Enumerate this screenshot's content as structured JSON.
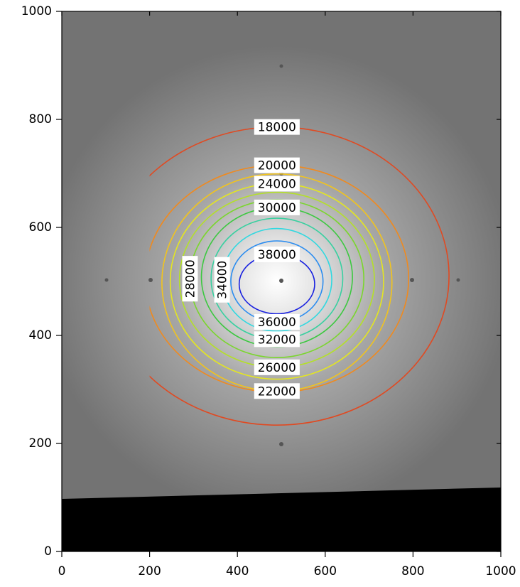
{
  "chart_data": {
    "type": "contour",
    "xlim": [
      0,
      1000
    ],
    "ylim": [
      0,
      1000
    ],
    "xticks": [
      0,
      200,
      400,
      600,
      800,
      1000
    ],
    "yticks": [
      0,
      200,
      400,
      600,
      800,
      1000
    ],
    "contour_xlim": [
      200,
      1000
    ],
    "contours": [
      {
        "level": 18000,
        "color": "#e04a22",
        "center": [
          490,
          510
        ],
        "rx": 392,
        "ry": 276,
        "label_at": "top"
      },
      {
        "level": 20000,
        "color": "#f08a1e",
        "center": [
          490,
          505
        ],
        "rx": 300,
        "ry": 210,
        "label_at": "top"
      },
      {
        "level": 22000,
        "color": "#f2c41c",
        "center": [
          490,
          498
        ],
        "rx": 262,
        "ry": 201,
        "label_at": "bottom"
      },
      {
        "level": 24000,
        "color": "#e4e620",
        "center": [
          490,
          500
        ],
        "rx": 243,
        "ry": 181,
        "label_at": "top"
      },
      {
        "level": 26000,
        "color": "#b4e028",
        "center": [
          490,
          503
        ],
        "rx": 222,
        "ry": 162,
        "label_at": "bottom"
      },
      {
        "level": 28000,
        "color": "#7ad62c",
        "center": [
          490,
          505
        ],
        "rx": 198,
        "ry": 146,
        "label_at": "left"
      },
      {
        "level": 30000,
        "color": "#3cc840",
        "center": [
          490,
          508
        ],
        "rx": 172,
        "ry": 129,
        "label_at": "top"
      },
      {
        "level": 32000,
        "color": "#38d0a0",
        "center": [
          490,
          505
        ],
        "rx": 150,
        "ry": 112,
        "label_at": "bottom"
      },
      {
        "level": 34000,
        "color": "#30d8e0",
        "center": [
          490,
          503
        ],
        "rx": 125,
        "ry": 95,
        "label_at": "left"
      },
      {
        "level": 36000,
        "color": "#2a8cf0",
        "center": [
          490,
          500
        ],
        "rx": 105,
        "ry": 75,
        "label_at": "bottom"
      },
      {
        "level": 38000,
        "color": "#1820e0",
        "center": [
          490,
          495
        ],
        "rx": 86,
        "ry": 55,
        "label_at": "top"
      }
    ]
  }
}
